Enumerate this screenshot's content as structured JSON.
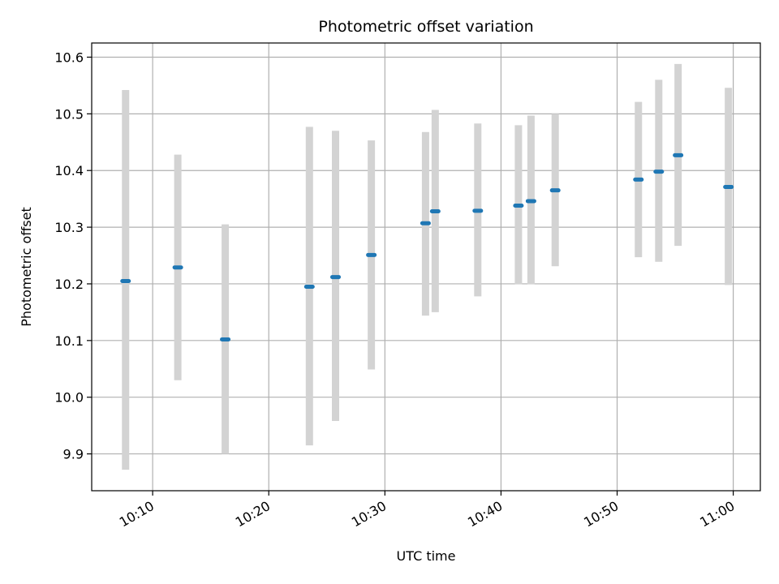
{
  "chart_data": {
    "type": "scatter",
    "title": "Photometric offset variation",
    "xlabel": "UTC time",
    "ylabel": "Photometric offset",
    "x_ticks": [
      "10:10",
      "10:20",
      "10:30",
      "10:40",
      "10:50",
      "11:00"
    ],
    "y_ticks": [
      "9.9",
      "10.0",
      "10.1",
      "10.2",
      "10.3",
      "10.4",
      "10.5",
      "10.6"
    ],
    "xlim": [
      "10:04:45",
      "11:02:20"
    ],
    "ylim": [
      9.835,
      10.625
    ],
    "grid": true,
    "error_bar_color": "#d3d3d3",
    "marker_color": "#1f77b4",
    "series": [
      {
        "points": [
          {
            "x": "10:07:40",
            "y": 10.205,
            "ylow": 9.872,
            "yhigh": 10.542
          },
          {
            "x": "10:12:10",
            "y": 10.229,
            "ylow": 10.03,
            "yhigh": 10.428
          },
          {
            "x": "10:16:15",
            "y": 10.102,
            "ylow": 9.9,
            "yhigh": 10.305
          },
          {
            "x": "10:23:30",
            "y": 10.195,
            "ylow": 9.915,
            "yhigh": 10.477
          },
          {
            "x": "10:25:45",
            "y": 10.212,
            "ylow": 9.958,
            "yhigh": 10.47
          },
          {
            "x": "10:28:50",
            "y": 10.251,
            "ylow": 10.049,
            "yhigh": 10.453
          },
          {
            "x": "10:33:30",
            "y": 10.307,
            "ylow": 10.144,
            "yhigh": 10.468
          },
          {
            "x": "10:34:20",
            "y": 10.328,
            "ylow": 10.15,
            "yhigh": 10.507
          },
          {
            "x": "10:38:00",
            "y": 10.329,
            "ylow": 10.178,
            "yhigh": 10.483
          },
          {
            "x": "10:41:30",
            "y": 10.338,
            "ylow": 10.199,
            "yhigh": 10.48
          },
          {
            "x": "10:42:35",
            "y": 10.346,
            "ylow": 10.199,
            "yhigh": 10.497
          },
          {
            "x": "10:44:40",
            "y": 10.365,
            "ylow": 10.231,
            "yhigh": 10.5
          },
          {
            "x": "10:51:50",
            "y": 10.384,
            "ylow": 10.247,
            "yhigh": 10.521
          },
          {
            "x": "10:53:35",
            "y": 10.398,
            "ylow": 10.239,
            "yhigh": 10.56
          },
          {
            "x": "10:55:15",
            "y": 10.427,
            "ylow": 10.267,
            "yhigh": 10.588
          },
          {
            "x": "10:59:35",
            "y": 10.371,
            "ylow": 10.198,
            "yhigh": 10.546
          }
        ]
      }
    ]
  }
}
